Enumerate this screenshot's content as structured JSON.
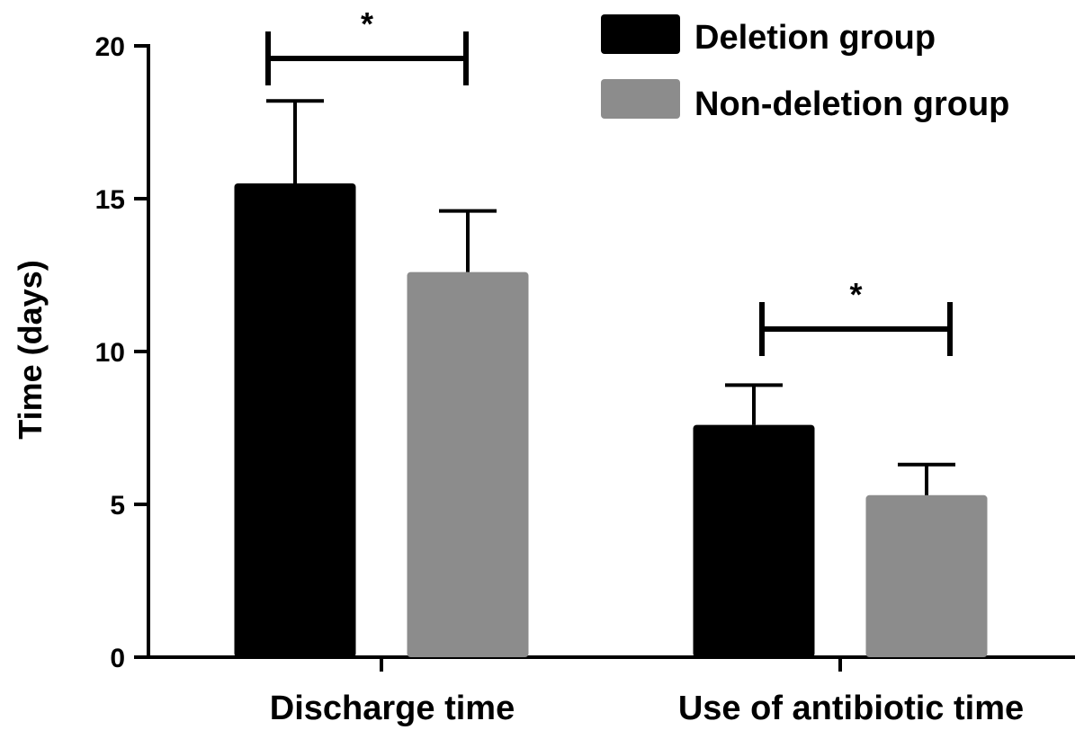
{
  "chart_data": {
    "type": "bar",
    "title": "",
    "xlabel": "",
    "ylabel": "Time (days)",
    "ylim": [
      0,
      20
    ],
    "yticks": [
      0,
      5,
      10,
      15,
      20
    ],
    "categories": [
      "Discharge time",
      "Use of antibiotic time"
    ],
    "series": [
      {
        "name": "Deletion group",
        "color": "#000000",
        "values": [
          15.5,
          7.6
        ],
        "errors": [
          2.7,
          1.3
        ]
      },
      {
        "name": "Non-deletion group",
        "color": "#8c8c8c",
        "values": [
          12.6,
          5.3
        ],
        "errors": [
          2.0,
          1.0
        ]
      }
    ],
    "significance": [
      {
        "category_index": 0,
        "label": "*"
      },
      {
        "category_index": 1,
        "label": "*"
      }
    ],
    "legend_position": "top-right",
    "grid": false
  }
}
